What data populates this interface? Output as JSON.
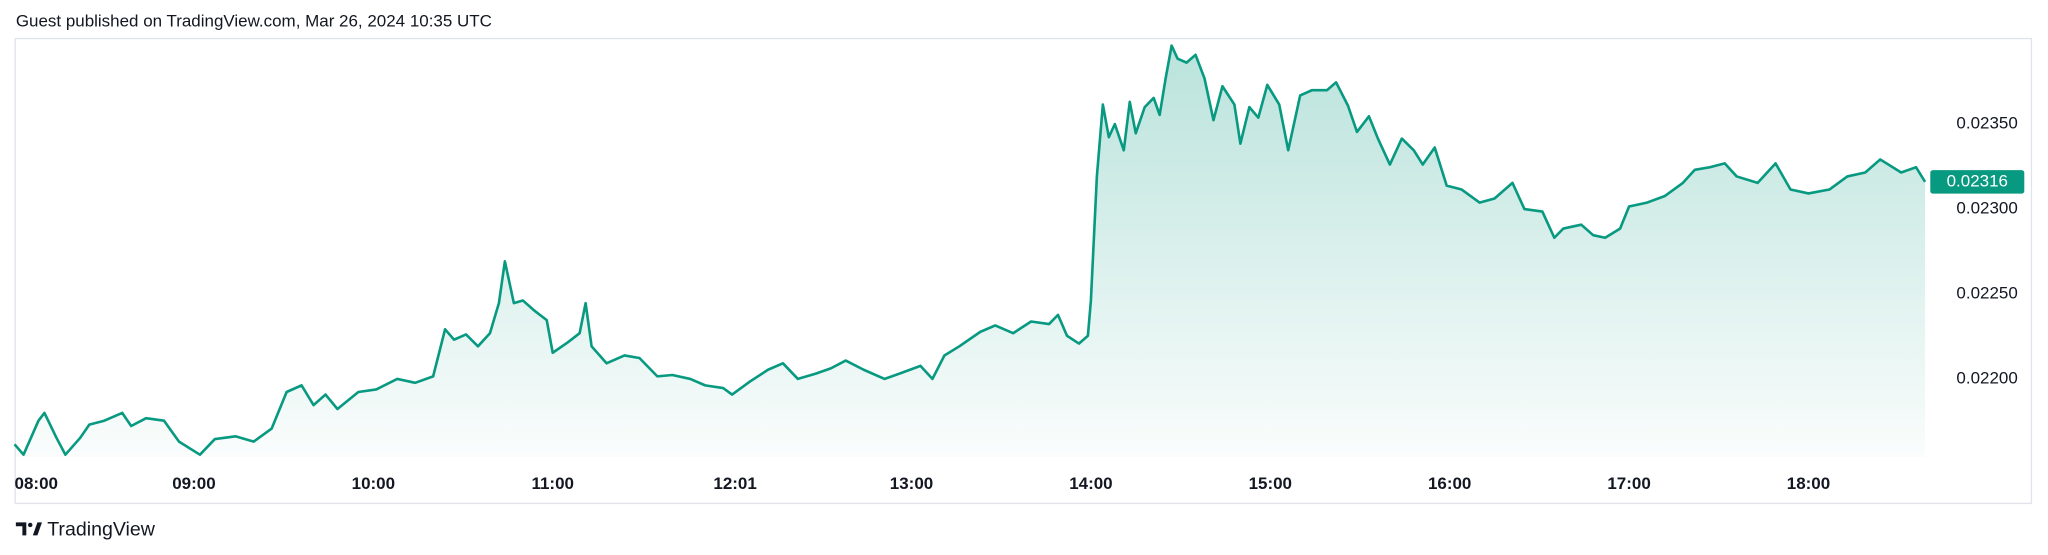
{
  "header": {
    "text": "Guest published on TradingView.com, Mar 26, 2024 10:35 UTC"
  },
  "footer": {
    "brand": "TradingView"
  },
  "chart_data": {
    "type": "area",
    "color": "#089981",
    "x": [
      "08:00",
      "08:03",
      "08:08",
      "08:10",
      "08:14",
      "08:17",
      "08:22",
      "08:25",
      "08:30",
      "08:36",
      "08:39",
      "08:44",
      "08:50",
      "08:55",
      "09:02",
      "09:07",
      "09:14",
      "09:20",
      "09:26",
      "09:31",
      "09:36",
      "09:40",
      "09:44",
      "09:48",
      "09:55",
      "10:01",
      "10:08",
      "10:14",
      "10:20",
      "10:24",
      "10:27",
      "10:31",
      "10:35",
      "10:39",
      "10:42",
      "10:44",
      "10:47",
      "10:50",
      "10:54",
      "10:58",
      "11:00",
      "11:05",
      "11:09",
      "11:11",
      "11:13",
      "11:18",
      "11:24",
      "11:29",
      "11:35",
      "11:40",
      "11:46",
      "11:51",
      "11:57",
      "12:00",
      "12:06",
      "12:12",
      "12:17",
      "12:22",
      "12:28",
      "12:33",
      "12:38",
      "12:44",
      "12:51",
      "12:57",
      "13:03",
      "13:07",
      "13:11",
      "13:16",
      "13:23",
      "13:28",
      "13:34",
      "13:40",
      "13:46",
      "13:49",
      "13:52",
      "13:56",
      "13:59",
      "14:00",
      "14:02",
      "14:04",
      "14:06",
      "14:08",
      "14:11",
      "14:13",
      "14:15",
      "14:18",
      "14:21",
      "14:23",
      "14:25",
      "14:27",
      "14:29",
      "14:32",
      "14:35",
      "14:38",
      "14:41",
      "14:44",
      "14:48",
      "14:50",
      "14:53",
      "14:56",
      "14:59",
      "15:03",
      "15:06",
      "15:10",
      "15:14",
      "15:19",
      "15:22",
      "15:26",
      "15:29",
      "15:33",
      "15:36",
      "15:40",
      "15:44",
      "15:48",
      "15:51",
      "15:55",
      "15:59",
      "16:04",
      "16:10",
      "16:15",
      "16:21",
      "16:25",
      "16:31",
      "16:35",
      "16:38",
      "16:44",
      "16:48",
      "16:52",
      "16:57",
      "17:00",
      "17:06",
      "17:12",
      "17:18",
      "17:22",
      "17:27",
      "17:32",
      "17:36",
      "17:43",
      "17:49",
      "17:54",
      "18:00",
      "18:07",
      "18:13",
      "18:19",
      "18:24",
      "18:31",
      "18:36",
      "18:39"
    ],
    "values": [
      0.021615,
      0.021554,
      0.021754,
      0.0218,
      0.021654,
      0.021554,
      0.021654,
      0.021731,
      0.021754,
      0.0218,
      0.021723,
      0.021769,
      0.021754,
      0.021631,
      0.021554,
      0.021646,
      0.021662,
      0.021631,
      0.021708,
      0.021923,
      0.021962,
      0.021846,
      0.021908,
      0.021823,
      0.021923,
      0.021938,
      0.022,
      0.021977,
      0.022015,
      0.022292,
      0.022231,
      0.022262,
      0.022192,
      0.022269,
      0.022446,
      0.022692,
      0.022446,
      0.022462,
      0.0224,
      0.022346,
      0.022154,
      0.022215,
      0.022269,
      0.022446,
      0.022192,
      0.022092,
      0.022138,
      0.022123,
      0.022015,
      0.022023,
      0.022,
      0.021962,
      0.021946,
      0.021908,
      0.021985,
      0.022054,
      0.022092,
      0.022,
      0.022031,
      0.022062,
      0.022108,
      0.022054,
      0.022,
      0.022038,
      0.022077,
      0.022,
      0.022138,
      0.022192,
      0.022277,
      0.022315,
      0.022269,
      0.022338,
      0.022323,
      0.022377,
      0.022254,
      0.022208,
      0.022254,
      0.022462,
      0.023192,
      0.023615,
      0.023423,
      0.0235,
      0.023346,
      0.023631,
      0.023446,
      0.0236,
      0.023654,
      0.023554,
      0.023769,
      0.023962,
      0.023885,
      0.023862,
      0.023908,
      0.023769,
      0.023523,
      0.023723,
      0.023615,
      0.023385,
      0.0236,
      0.023538,
      0.023731,
      0.023615,
      0.023346,
      0.023669,
      0.0237,
      0.0237,
      0.023746,
      0.023608,
      0.023454,
      0.023546,
      0.023415,
      0.023262,
      0.023415,
      0.023346,
      0.023262,
      0.023362,
      0.023138,
      0.023115,
      0.023038,
      0.023062,
      0.023154,
      0.023,
      0.022985,
      0.022831,
      0.022885,
      0.022908,
      0.022846,
      0.022831,
      0.022885,
      0.023015,
      0.023038,
      0.023077,
      0.023154,
      0.023231,
      0.023246,
      0.023269,
      0.023192,
      0.023154,
      0.023269,
      0.023115,
      0.023092,
      0.023115,
      0.023192,
      0.023215,
      0.023292,
      0.023215,
      0.023246,
      0.02316
    ],
    "xlim": [
      "08:00",
      "18:39"
    ],
    "xticks": [
      "08:00",
      "09:00",
      "10:00",
      "11:00",
      "12:01",
      "13:00",
      "14:00",
      "15:00",
      "16:00",
      "17:00",
      "18:00"
    ],
    "ylim": [
      0.02154,
      0.024
    ],
    "yticks": [
      {
        "value": 0.022,
        "label": "0.02200"
      },
      {
        "value": 0.0225,
        "label": "0.02250"
      },
      {
        "value": 0.023,
        "label": "0.02300"
      },
      {
        "value": 0.0235,
        "label": "0.02350"
      }
    ],
    "grid": false
  }
}
